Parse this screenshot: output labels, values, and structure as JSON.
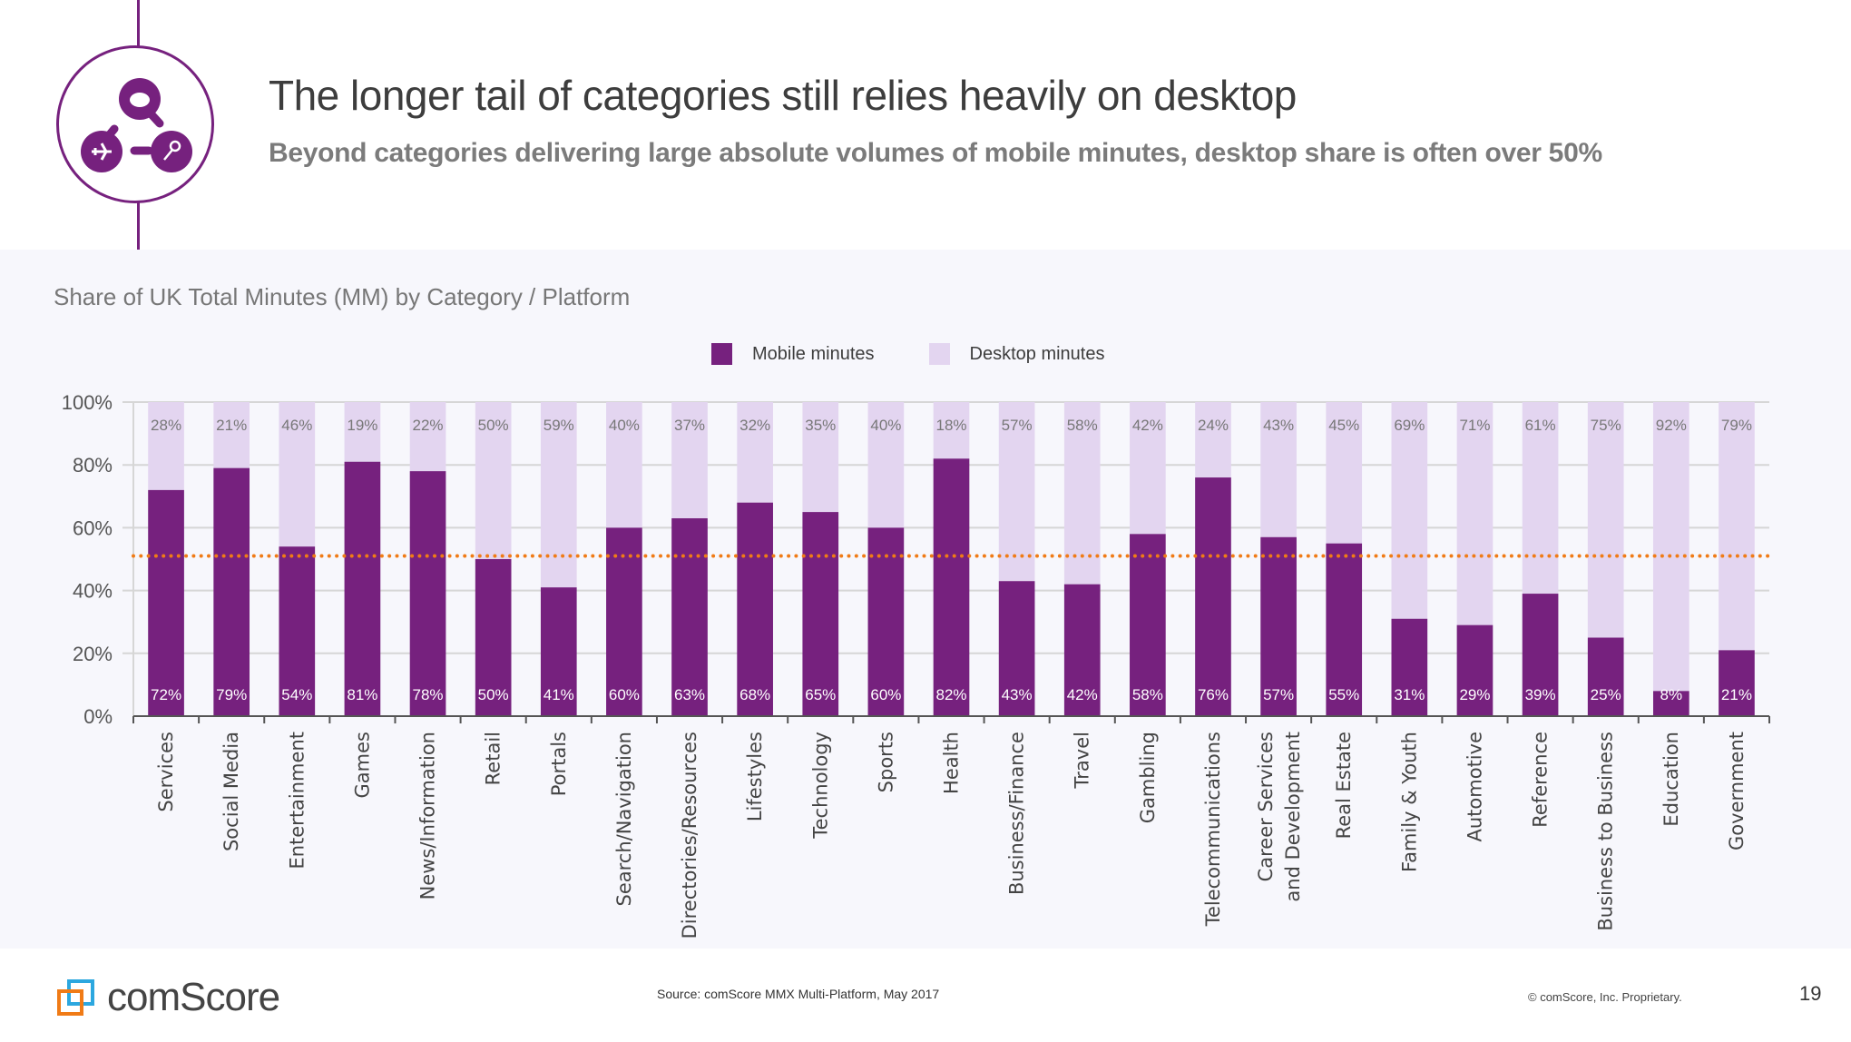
{
  "header": {
    "title": "The longer tail of categories still relies heavily on desktop",
    "subtitle": "Beyond categories delivering large absolute volumes of mobile minutes, desktop share is often over 50%",
    "icon": "network-icon"
  },
  "colors": {
    "brand_purple": "#76217e",
    "mobile": "#76217e",
    "desktop": "#e3d5f0",
    "reference_line": "#f07b16",
    "panel_bg": "#f7f7fc"
  },
  "chart_data": {
    "type": "bar",
    "stacked": true,
    "title": "Share of UK Total Minutes (MM) by Category / Platform",
    "xlabel": "",
    "ylabel": "",
    "ylim": [
      0,
      100
    ],
    "yticks": [
      "0%",
      "20%",
      "40%",
      "60%",
      "80%",
      "100%"
    ],
    "grid": true,
    "legend_position": "top-center",
    "reference_line": {
      "value": 51,
      "style": "dotted"
    },
    "categories": [
      "Services",
      "Social Media",
      "Entertainment",
      "Games",
      "News/Information",
      "Retail",
      "Portals",
      "Search/Navigation",
      "Directories/Resources",
      "Lifestyles",
      "Technology",
      "Sports",
      "Health",
      "Business/Finance",
      "Travel",
      "Gambling",
      "Telecommunications",
      "Career Services and Development",
      "Real Estate",
      "Family & Youth",
      "Automotive",
      "Reference",
      "Business to Business",
      "Education",
      "Government"
    ],
    "series": [
      {
        "name": "Mobile minutes",
        "values": [
          72,
          79,
          54,
          81,
          78,
          50,
          41,
          60,
          63,
          68,
          65,
          60,
          82,
          43,
          42,
          58,
          76,
          57,
          55,
          31,
          29,
          39,
          25,
          8,
          21
        ]
      },
      {
        "name": "Desktop minutes",
        "values": [
          28,
          21,
          46,
          19,
          22,
          50,
          59,
          40,
          37,
          32,
          35,
          40,
          18,
          57,
          58,
          42,
          24,
          43,
          45,
          69,
          71,
          61,
          75,
          92,
          79
        ]
      }
    ]
  },
  "footer": {
    "logo_text": "comScore",
    "source": "Source: comScore MMX Multi-Platform, May 2017",
    "copyright": "© comScore, Inc. Proprietary.",
    "page_number": "19"
  }
}
